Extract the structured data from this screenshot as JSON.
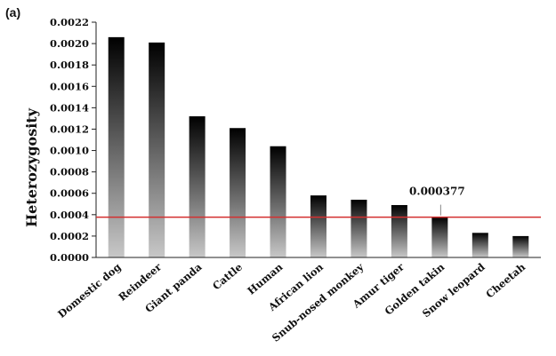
{
  "panel_label": "(a)",
  "chart_data": {
    "type": "bar",
    "title": "",
    "xlabel": "",
    "ylabel": "Heterozygosity",
    "ylim": [
      0,
      0.0022
    ],
    "yticks": [
      "0.0000",
      "0.0002",
      "0.0004",
      "0.0006",
      "0.0008",
      "0.0010",
      "0.0012",
      "0.0014",
      "0.0016",
      "0.0018",
      "0.0020",
      "0.0022"
    ],
    "categories": [
      "Domestic dog",
      "Reindeer",
      "Giant panda",
      "Cattle",
      "Human",
      "African lion",
      "Snub-nosed monkey",
      "Amur tiger",
      "Golden takin",
      "Snow leopard",
      "Cheetah"
    ],
    "values": [
      0.00206,
      0.00201,
      0.00132,
      0.00121,
      0.00104,
      0.00058,
      0.00054,
      0.00049,
      0.000377,
      0.00023,
      0.0002
    ],
    "reference_line": {
      "value": 0.000377,
      "color": "#d32f2f"
    },
    "annotation": {
      "text": "0.000377",
      "category": "Golden takin"
    },
    "grid": false,
    "legend": "none",
    "bar_gradient": {
      "top": "#000000",
      "bottom": "#c8c8c8"
    }
  }
}
